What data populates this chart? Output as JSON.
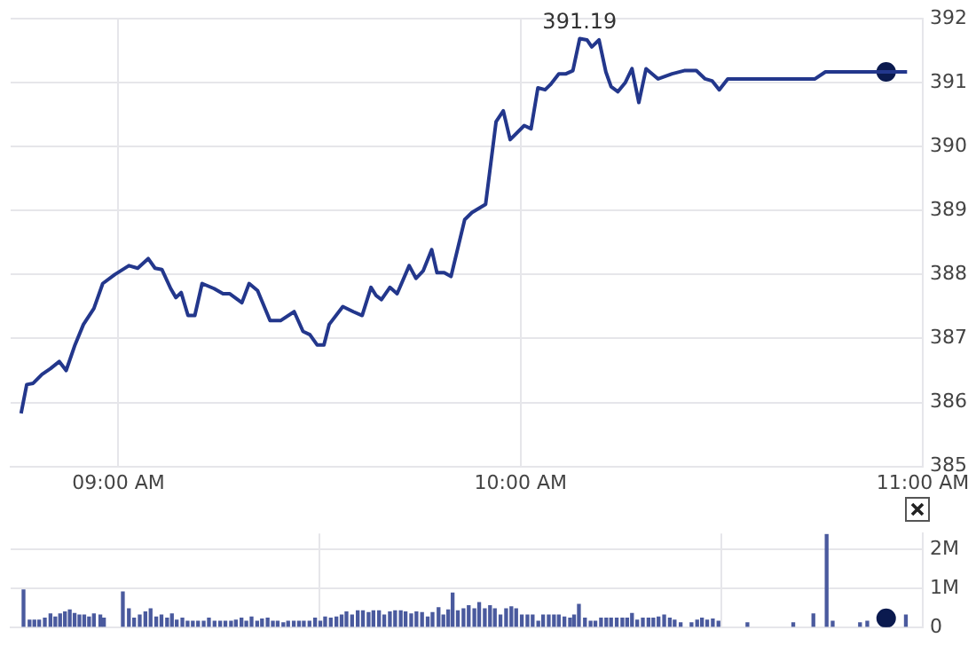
{
  "chart_data": [
    {
      "type": "line",
      "annotations": [
        "391.19"
      ],
      "xlim": [
        8.732,
        11
      ],
      "xticks": [
        {
          "value": 9,
          "label": "09:00 AM"
        },
        {
          "value": 10,
          "label": "10:00 AM"
        },
        {
          "value": 11,
          "label": "11:00 AM"
        }
      ],
      "ylim": [
        385,
        392
      ],
      "yticks": [
        385,
        386,
        387,
        388,
        389,
        390,
        391,
        392
      ],
      "grid": true,
      "legend": false,
      "marker": "none",
      "line_style": "solid",
      "series": [
        {
          "color": "#23378c",
          "x": [
            8.758,
            8.772,
            8.788,
            8.81,
            8.831,
            8.853,
            8.87,
            8.892,
            8.913,
            8.939,
            8.961,
            8.991,
            9.026,
            9.048,
            9.074,
            9.091,
            9.108,
            9.13,
            9.143,
            9.156,
            9.173,
            9.19,
            9.208,
            9.238,
            9.26,
            9.277,
            9.307,
            9.325,
            9.346,
            9.377,
            9.403,
            9.437,
            9.459,
            9.476,
            9.494,
            9.511,
            9.524,
            9.558,
            9.584,
            9.606,
            9.628,
            9.641,
            9.654,
            9.675,
            9.693,
            9.723,
            9.74,
            9.758,
            9.779,
            9.792,
            9.81,
            9.827,
            9.861,
            9.879,
            9.913,
            9.939,
            9.957,
            9.974,
            10.009,
            10.026,
            10.043,
            10.061,
            10.074,
            10.095,
            10.113,
            10.13,
            10.147,
            10.165,
            10.177,
            10.195,
            10.212,
            10.225,
            10.242,
            10.26,
            10.277,
            10.294,
            10.312,
            10.342,
            10.377,
            10.407,
            10.437,
            10.459,
            10.476,
            10.494,
            10.515,
            10.732,
            10.758,
            10.961
          ],
          "values": [
            385.83,
            386.28,
            386.3,
            386.44,
            386.53,
            386.64,
            386.5,
            386.9,
            387.22,
            387.47,
            387.86,
            388.0,
            388.14,
            388.1,
            388.25,
            388.1,
            388.08,
            387.78,
            387.64,
            387.72,
            387.36,
            387.36,
            387.86,
            387.78,
            387.7,
            387.7,
            387.56,
            387.86,
            387.75,
            387.28,
            387.28,
            387.42,
            387.11,
            387.06,
            386.9,
            386.9,
            387.22,
            387.5,
            387.42,
            387.36,
            387.8,
            387.67,
            387.61,
            387.8,
            387.7,
            388.14,
            387.94,
            388.06,
            388.39,
            388.03,
            388.03,
            387.97,
            388.86,
            388.97,
            389.1,
            390.39,
            390.56,
            390.11,
            390.33,
            390.28,
            390.92,
            390.89,
            390.97,
            391.14,
            391.14,
            391.19,
            391.69,
            391.67,
            391.56,
            391.67,
            391.17,
            390.94,
            390.86,
            391.0,
            391.22,
            390.69,
            391.22,
            391.06,
            391.14,
            391.19,
            391.19,
            391.06,
            391.03,
            390.89,
            391.06,
            391.06,
            391.17,
            391.17
          ]
        },
        {
          "type": "scatter",
          "marker": "circle",
          "color": "#0b1a4f",
          "x": [
            10.909
          ],
          "values": [
            391.17
          ]
        }
      ]
    },
    {
      "type": "bar",
      "xlim": [
        8.732,
        11
      ],
      "xticks": [
        9,
        10,
        11
      ],
      "ylim": [
        0,
        2.4
      ],
      "yticks": [
        {
          "value": 0,
          "label": "0"
        },
        {
          "value": 1,
          "label": "1M"
        },
        {
          "value": 2,
          "label": "2M"
        }
      ],
      "grid": true,
      "legend": false,
      "tick_labels": "y",
      "series": [
        {
          "color": "#4a5a9e",
          "x": [
            8.764,
            8.779,
            8.791,
            8.803,
            8.817,
            8.831,
            8.843,
            8.855,
            8.867,
            8.879,
            8.891,
            8.903,
            8.915,
            8.927,
            8.939,
            8.955,
            8.964,
            9.011,
            9.026,
            9.039,
            9.053,
            9.067,
            9.08,
            9.094,
            9.107,
            9.121,
            9.133,
            9.145,
            9.159,
            9.172,
            9.185,
            9.198,
            9.212,
            9.225,
            9.239,
            9.253,
            9.266,
            9.28,
            9.292,
            9.306,
            9.318,
            9.331,
            9.345,
            9.357,
            9.371,
            9.384,
            9.396,
            9.41,
            9.422,
            9.436,
            9.449,
            9.461,
            9.475,
            9.489,
            9.502,
            9.514,
            9.528,
            9.542,
            9.555,
            9.567,
            9.581,
            9.595,
            9.608,
            9.622,
            9.634,
            9.648,
            9.661,
            9.675,
            9.688,
            9.702,
            9.714,
            9.728,
            9.741,
            9.755,
            9.769,
            9.781,
            9.796,
            9.808,
            9.82,
            9.831,
            9.844,
            9.858,
            9.871,
            9.885,
            9.897,
            9.911,
            9.924,
            9.936,
            9.95,
            9.964,
            9.977,
            9.989,
            10.003,
            10.017,
            10.03,
            10.044,
            10.056,
            10.07,
            10.083,
            10.095,
            10.109,
            10.123,
            10.133,
            10.145,
            10.16,
            10.174,
            10.186,
            10.2,
            10.213,
            10.225,
            10.239,
            10.253,
            10.265,
            10.277,
            10.29,
            10.304,
            10.318,
            10.33,
            10.343,
            10.357,
            10.371,
            10.383,
            10.398,
            10.425,
            10.439,
            10.451,
            10.464,
            10.478,
            10.492,
            10.564,
            10.678,
            10.728,
            10.761,
            10.776,
            10.844,
            10.862,
            10.958
          ],
          "values": [
            0.95,
            0.18,
            0.18,
            0.18,
            0.23,
            0.34,
            0.26,
            0.34,
            0.39,
            0.44,
            0.35,
            0.31,
            0.31,
            0.26,
            0.34,
            0.31,
            0.23,
            0.9,
            0.47,
            0.23,
            0.31,
            0.39,
            0.47,
            0.26,
            0.31,
            0.23,
            0.34,
            0.18,
            0.23,
            0.15,
            0.15,
            0.15,
            0.15,
            0.23,
            0.15,
            0.15,
            0.15,
            0.15,
            0.18,
            0.23,
            0.15,
            0.26,
            0.15,
            0.21,
            0.23,
            0.15,
            0.15,
            0.11,
            0.15,
            0.15,
            0.15,
            0.15,
            0.15,
            0.23,
            0.15,
            0.26,
            0.23,
            0.26,
            0.31,
            0.39,
            0.31,
            0.42,
            0.42,
            0.37,
            0.42,
            0.42,
            0.31,
            0.39,
            0.42,
            0.42,
            0.39,
            0.34,
            0.39,
            0.37,
            0.26,
            0.37,
            0.5,
            0.31,
            0.44,
            0.87,
            0.42,
            0.47,
            0.55,
            0.47,
            0.63,
            0.47,
            0.55,
            0.47,
            0.31,
            0.47,
            0.52,
            0.47,
            0.31,
            0.31,
            0.31,
            0.15,
            0.31,
            0.31,
            0.31,
            0.31,
            0.26,
            0.23,
            0.31,
            0.58,
            0.23,
            0.15,
            0.15,
            0.23,
            0.23,
            0.23,
            0.23,
            0.23,
            0.23,
            0.35,
            0.18,
            0.23,
            0.23,
            0.23,
            0.26,
            0.31,
            0.23,
            0.18,
            0.11,
            0.11,
            0.18,
            0.23,
            0.18,
            0.21,
            0.15,
            0.11,
            0.11,
            0.34,
            2.37,
            0.15,
            0.11,
            0.15,
            0.31
          ]
        },
        {
          "type": "scatter",
          "marker": "circle",
          "color": "#0b1a4f",
          "x": [
            10.909
          ],
          "values": [
            0.23
          ]
        }
      ]
    }
  ]
}
